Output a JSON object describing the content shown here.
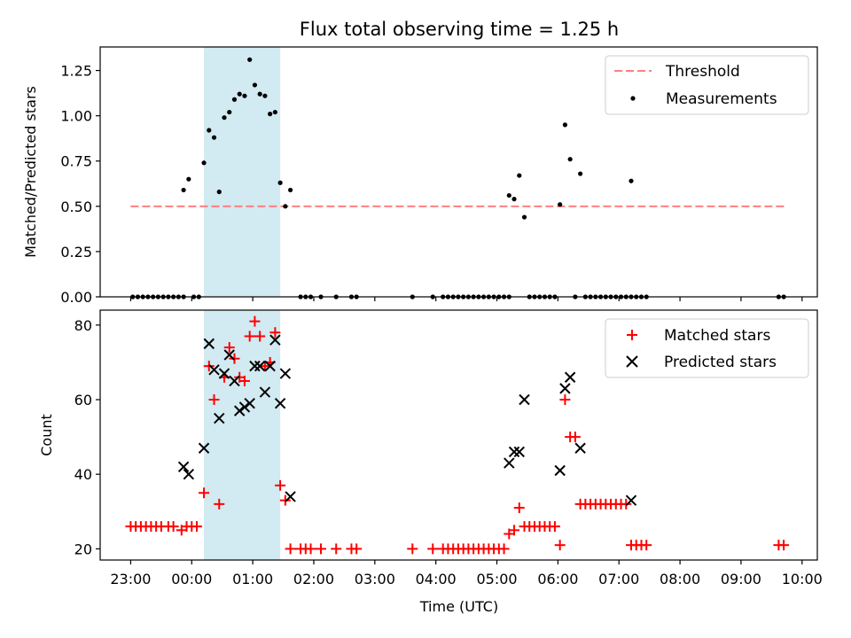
{
  "title": "Flux total observing time = 1.25 h",
  "xlabel": "Time (UTC)",
  "colors": {
    "threshold": "#ff7f7f",
    "measurements": "#000000",
    "matched": "#ff0000",
    "predicted": "#000000",
    "shade": "#add8e6"
  },
  "chart_data": [
    {
      "type": "scatter",
      "ylabel": "Matched/Predicted stars",
      "ylim": [
        0,
        1.38
      ],
      "xlim": [
        "22:30",
        "10:15"
      ],
      "y_ticks": [
        "0.00",
        "0.25",
        "0.50",
        "0.75",
        "1.00",
        "1.25"
      ],
      "x_ticks": [
        "23:00",
        "00:00",
        "01:00",
        "02:00",
        "03:00",
        "04:00",
        "05:00",
        "06:00",
        "07:00",
        "08:00",
        "09:00",
        "10:00"
      ],
      "legend_position": "top-right",
      "shaded_interval": [
        "00:12",
        "01:27"
      ],
      "threshold": {
        "name": "Threshold",
        "value": 0.5,
        "x_range": [
          "23:00",
          "09:45"
        ]
      },
      "series": [
        {
          "name": "Measurements",
          "points": [
            [
              "23:02",
              0
            ],
            [
              "23:07",
              0
            ],
            [
              "23:12",
              0
            ],
            [
              "23:17",
              0
            ],
            [
              "23:22",
              0
            ],
            [
              "23:27",
              0
            ],
            [
              "23:32",
              0
            ],
            [
              "23:37",
              0
            ],
            [
              "23:42",
              0
            ],
            [
              "23:47",
              0
            ],
            [
              "23:52",
              0
            ],
            [
              "23:52",
              0.59
            ],
            [
              "23:57",
              0.65
            ],
            [
              "00:02",
              0
            ],
            [
              "00:07",
              0
            ],
            [
              "00:12",
              0.74
            ],
            [
              "00:17",
              0.92
            ],
            [
              "00:22",
              0.88
            ],
            [
              "00:27",
              0.58
            ],
            [
              "00:32",
              0.99
            ],
            [
              "00:37",
              1.02
            ],
            [
              "00:42",
              1.09
            ],
            [
              "00:47",
              1.12
            ],
            [
              "00:52",
              1.11
            ],
            [
              "00:57",
              1.31
            ],
            [
              "01:02",
              1.17
            ],
            [
              "01:07",
              1.12
            ],
            [
              "01:12",
              1.11
            ],
            [
              "01:17",
              1.01
            ],
            [
              "01:22",
              1.02
            ],
            [
              "01:27",
              0.63
            ],
            [
              "01:32",
              0.5
            ],
            [
              "01:37",
              0.59
            ],
            [
              "01:47",
              0
            ],
            [
              "01:52",
              0
            ],
            [
              "01:57",
              0
            ],
            [
              "02:07",
              0
            ],
            [
              "02:22",
              0
            ],
            [
              "02:37",
              0
            ],
            [
              "02:42",
              0
            ],
            [
              "03:37",
              0
            ],
            [
              "03:57",
              0
            ],
            [
              "04:07",
              0
            ],
            [
              "04:12",
              0
            ],
            [
              "04:17",
              0
            ],
            [
              "04:22",
              0
            ],
            [
              "04:27",
              0
            ],
            [
              "04:32",
              0
            ],
            [
              "04:37",
              0
            ],
            [
              "04:42",
              0
            ],
            [
              "04:47",
              0
            ],
            [
              "04:52",
              0
            ],
            [
              "04:57",
              0
            ],
            [
              "05:02",
              0
            ],
            [
              "05:07",
              0
            ],
            [
              "05:12",
              0
            ],
            [
              "05:12",
              0.56
            ],
            [
              "05:17",
              0.54
            ],
            [
              "05:22",
              0.67
            ],
            [
              "05:27",
              0.44
            ],
            [
              "05:32",
              0
            ],
            [
              "05:37",
              0
            ],
            [
              "05:42",
              0
            ],
            [
              "05:47",
              0
            ],
            [
              "05:52",
              0
            ],
            [
              "05:57",
              0
            ],
            [
              "06:02",
              0.51
            ],
            [
              "06:07",
              0.95
            ],
            [
              "06:12",
              0.76
            ],
            [
              "06:22",
              0.68
            ],
            [
              "06:17",
              0
            ],
            [
              "06:27",
              0
            ],
            [
              "06:32",
              0
            ],
            [
              "06:37",
              0
            ],
            [
              "06:42",
              0
            ],
            [
              "06:47",
              0
            ],
            [
              "06:52",
              0
            ],
            [
              "06:57",
              0
            ],
            [
              "07:02",
              0
            ],
            [
              "07:07",
              0
            ],
            [
              "07:12",
              0.64
            ],
            [
              "07:12",
              0
            ],
            [
              "07:17",
              0
            ],
            [
              "07:22",
              0
            ],
            [
              "07:27",
              0
            ],
            [
              "09:37",
              0
            ],
            [
              "09:42",
              0
            ]
          ]
        }
      ]
    },
    {
      "type": "scatter",
      "ylabel": "Count",
      "ylim": [
        17,
        84
      ],
      "xlim": [
        "22:30",
        "10:15"
      ],
      "y_ticks": [
        "20",
        "40",
        "60",
        "80"
      ],
      "x_ticks": [
        "23:00",
        "00:00",
        "01:00",
        "02:00",
        "03:00",
        "04:00",
        "05:00",
        "06:00",
        "07:00",
        "08:00",
        "09:00",
        "10:00"
      ],
      "legend_position": "top-right",
      "shaded_interval": [
        "00:12",
        "01:27"
      ],
      "series": [
        {
          "name": "Matched stars",
          "points": [
            [
              "23:00",
              26
            ],
            [
              "23:05",
              26
            ],
            [
              "23:10",
              26
            ],
            [
              "23:15",
              26
            ],
            [
              "23:20",
              26
            ],
            [
              "23:25",
              26
            ],
            [
              "23:30",
              26
            ],
            [
              "23:37",
              26
            ],
            [
              "23:42",
              26
            ],
            [
              "23:50",
              25
            ],
            [
              "23:55",
              26
            ],
            [
              "00:00",
              26
            ],
            [
              "00:05",
              26
            ],
            [
              "00:12",
              35
            ],
            [
              "00:17",
              69
            ],
            [
              "00:22",
              60
            ],
            [
              "00:27",
              32
            ],
            [
              "00:32",
              66
            ],
            [
              "00:37",
              74
            ],
            [
              "00:42",
              71
            ],
            [
              "00:47",
              66
            ],
            [
              "00:52",
              65
            ],
            [
              "00:57",
              77
            ],
            [
              "01:02",
              81
            ],
            [
              "01:07",
              77
            ],
            [
              "01:12",
              69
            ],
            [
              "01:17",
              70
            ],
            [
              "01:22",
              78
            ],
            [
              "01:27",
              37
            ],
            [
              "01:32",
              33
            ],
            [
              "01:37",
              20
            ],
            [
              "01:47",
              20
            ],
            [
              "01:52",
              20
            ],
            [
              "01:57",
              20
            ],
            [
              "02:07",
              20
            ],
            [
              "02:22",
              20
            ],
            [
              "02:37",
              20
            ],
            [
              "02:42",
              20
            ],
            [
              "03:37",
              20
            ],
            [
              "03:57",
              20
            ],
            [
              "04:07",
              20
            ],
            [
              "04:12",
              20
            ],
            [
              "04:17",
              20
            ],
            [
              "04:22",
              20
            ],
            [
              "04:27",
              20
            ],
            [
              "04:32",
              20
            ],
            [
              "04:37",
              20
            ],
            [
              "04:42",
              20
            ],
            [
              "04:47",
              20
            ],
            [
              "04:52",
              20
            ],
            [
              "04:57",
              20
            ],
            [
              "05:02",
              20
            ],
            [
              "05:07",
              20
            ],
            [
              "05:12",
              24
            ],
            [
              "05:17",
              25
            ],
            [
              "05:22",
              31
            ],
            [
              "05:27",
              26
            ],
            [
              "05:32",
              26
            ],
            [
              "05:37",
              26
            ],
            [
              "05:42",
              26
            ],
            [
              "05:47",
              26
            ],
            [
              "05:52",
              26
            ],
            [
              "05:57",
              26
            ],
            [
              "06:02",
              21
            ],
            [
              "06:07",
              60
            ],
            [
              "06:12",
              50
            ],
            [
              "06:17",
              50
            ],
            [
              "06:22",
              32
            ],
            [
              "06:27",
              32
            ],
            [
              "06:32",
              32
            ],
            [
              "06:37",
              32
            ],
            [
              "06:42",
              32
            ],
            [
              "06:47",
              32
            ],
            [
              "06:52",
              32
            ],
            [
              "06:57",
              32
            ],
            [
              "07:02",
              32
            ],
            [
              "07:07",
              32
            ],
            [
              "07:12",
              21
            ],
            [
              "07:17",
              21
            ],
            [
              "07:22",
              21
            ],
            [
              "07:27",
              21
            ],
            [
              "09:37",
              21
            ],
            [
              "09:42",
              21
            ]
          ]
        },
        {
          "name": "Predicted stars",
          "points": [
            [
              "23:52",
              42
            ],
            [
              "23:57",
              40
            ],
            [
              "00:12",
              47
            ],
            [
              "00:17",
              75
            ],
            [
              "00:22",
              68
            ],
            [
              "00:27",
              55
            ],
            [
              "00:32",
              67
            ],
            [
              "00:37",
              72
            ],
            [
              "00:42",
              65
            ],
            [
              "00:47",
              57
            ],
            [
              "00:52",
              58
            ],
            [
              "00:57",
              59
            ],
            [
              "01:02",
              69
            ],
            [
              "01:07",
              69
            ],
            [
              "01:12",
              62
            ],
            [
              "01:17",
              69
            ],
            [
              "01:22",
              76
            ],
            [
              "01:27",
              59
            ],
            [
              "01:32",
              67
            ],
            [
              "01:37",
              34
            ],
            [
              "05:12",
              43
            ],
            [
              "05:17",
              46
            ],
            [
              "05:22",
              46
            ],
            [
              "05:27",
              60
            ],
            [
              "06:02",
              41
            ],
            [
              "06:07",
              63
            ],
            [
              "06:12",
              66
            ],
            [
              "06:22",
              47
            ],
            [
              "07:12",
              33
            ]
          ]
        }
      ]
    }
  ]
}
